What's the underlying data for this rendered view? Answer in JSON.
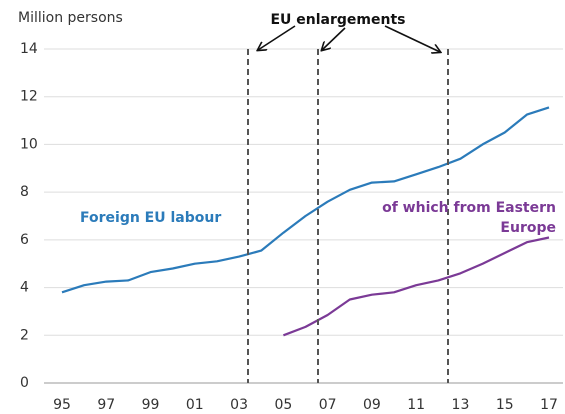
{
  "chart_data": {
    "type": "line",
    "annotation": "EU enlargements",
    "y_label": "Million persons",
    "categories": [
      "95",
      null,
      "97",
      null,
      "99",
      null,
      "01",
      null,
      "03",
      null,
      "05",
      null,
      "07",
      null,
      "09",
      null,
      "11",
      null,
      "13",
      null,
      "15",
      null,
      "17"
    ],
    "series": [
      {
        "name": "Foreign EU labour",
        "color": "#2b7bba",
        "values": [
          3.8,
          4.1,
          4.25,
          4.3,
          4.65,
          4.8,
          5.0,
          5.1,
          5.3,
          5.55,
          6.3,
          7.0,
          7.6,
          8.1,
          8.4,
          8.45,
          8.75,
          9.05,
          9.4,
          10.0,
          10.5,
          11.25,
          11.55
        ]
      },
      {
        "name": "of which from Eastern Europe",
        "color": "#7b3a96",
        "values": [
          null,
          null,
          null,
          null,
          null,
          null,
          null,
          null,
          null,
          null,
          2.0,
          2.35,
          2.85,
          3.5,
          3.7,
          3.8,
          4.1,
          4.3,
          4.6,
          5.0,
          5.45,
          5.9,
          6.1
        ]
      }
    ],
    "ylim": [
      0,
      14
    ],
    "yticks": [
      0,
      2,
      4,
      6,
      8,
      10,
      12,
      14
    ],
    "grid": true
  }
}
